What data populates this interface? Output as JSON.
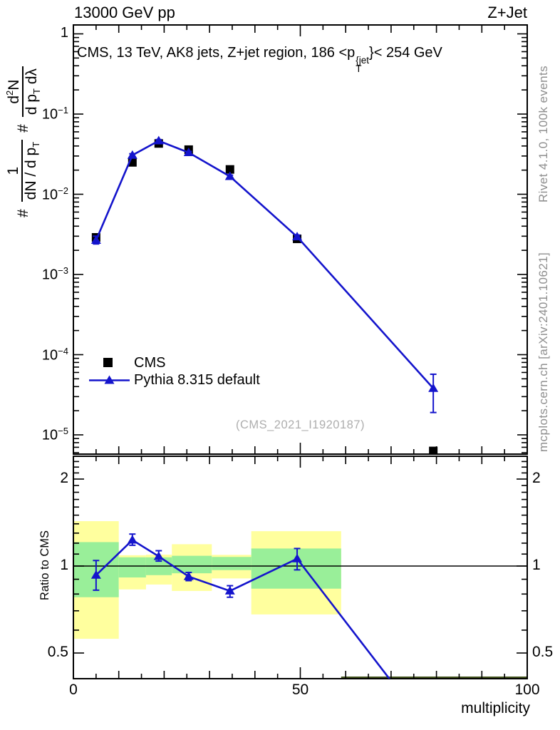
{
  "header": {
    "left": "13000 GeV pp",
    "right": "Z+Jet"
  },
  "side_text": {
    "top": "Rivet 4.1.0,  100k events",
    "bottom": "mcplots.cern.ch [arXiv:2401.10621]"
  },
  "main_plot": {
    "title": {
      "pre": "CMS, 13 TeV, AK8 jets, Z+jet region, 186 <p",
      "sup": "{jet",
      "sub": "T",
      "post": "}< 254 GeV"
    },
    "ylabel": {
      "hash1": "#",
      "frac1_num": "1",
      "frac1_den_pre": "dN / d p",
      "frac1_den_sub": "T",
      "hash2": "#",
      "frac2_num_pre": "d",
      "frac2_num_sup": "2",
      "frac2_num_post": "N",
      "frac2_den_pre": "d p",
      "frac2_den_sub": "T",
      "frac2_den_post": " dλ"
    },
    "watermark": "(CMS_2021_I1920187)",
    "legend": {
      "entries": [
        {
          "label": "CMS",
          "marker": "black-square"
        },
        {
          "label": "Pythia 8.315 default",
          "marker": "blue-line-triangle"
        }
      ]
    }
  },
  "ratio_plot": {
    "ylabel": "Ratio to CMS"
  },
  "axes": {
    "x": {
      "label": "multiplicity",
      "ticks": [
        {
          "label": "0",
          "x": 0
        },
        {
          "label": "50",
          "x": 50
        },
        {
          "label": "100",
          "x": 100
        }
      ]
    },
    "main_y": {
      "ticks": [
        {
          "base": "1",
          "exp": "",
          "v": 1
        },
        {
          "base": "10",
          "exp": "−1",
          "v": 0.1
        },
        {
          "base": "10",
          "exp": "−2",
          "v": 0.01
        },
        {
          "base": "10",
          "exp": "−3",
          "v": 0.001
        },
        {
          "base": "10",
          "exp": "−4",
          "v": 0.0001
        },
        {
          "base": "10",
          "exp": "−5",
          "v": 1e-05
        }
      ]
    },
    "ratio_y": {
      "ticks": [
        {
          "label": "2",
          "v": 2
        },
        {
          "label": "1",
          "v": 1
        },
        {
          "label": "0.5",
          "v": 0.5
        }
      ]
    }
  },
  "colors": {
    "mc_blue": "#1414cc",
    "data_black": "#000000",
    "band_yellow": "#ffff9e",
    "band_green": "#99ef99",
    "band_green_dark": "#44541e",
    "gray_text": "#8f8f8f",
    "watermark_gray": "#aeaeae"
  },
  "chart_data": [
    {
      "type": "line",
      "panel": "main",
      "title": "CMS, 13 TeV, AK8 jets, Z+jet region, 186 < pT{jet} < 254 GeV",
      "xlabel": "multiplicity",
      "ylabel": "#1/(dN/dpT) # d2N/(dpT dlambda)",
      "xlim": [
        0,
        100
      ],
      "ylim": [
        5.7e-06,
        1.29
      ],
      "yscale": "log",
      "x": [
        5.0,
        13.0,
        18.8,
        25.4,
        34.5,
        49.3,
        79.3
      ],
      "series": [
        {
          "name": "CMS",
          "marker": "square",
          "color": "#000000",
          "values": [
            0.0029,
            0.025,
            0.043,
            0.036,
            0.0204,
            0.00278,
            6.3e-06
          ]
        },
        {
          "name": "Pythia 8.315 default",
          "marker": "triangle",
          "color": "#1414cc",
          "values": [
            0.00267,
            0.0307,
            0.0464,
            0.0331,
            0.0167,
            0.00295,
            3.8e-05
          ],
          "err_lo": [
            0.0024,
            0.0295,
            0.045,
            0.032,
            0.0161,
            0.0028,
            1.9e-05
          ],
          "err_hi": [
            0.003,
            0.032,
            0.048,
            0.0342,
            0.0173,
            0.0031,
            5.7e-05
          ]
        }
      ],
      "legend_position": "left-middle"
    },
    {
      "type": "line",
      "panel": "ratio",
      "ylabel": "Ratio to CMS",
      "xlim": [
        0,
        100
      ],
      "ylim": [
        0.407,
        2.4
      ],
      "yscale": "log",
      "yticks": [
        0.5,
        1,
        2
      ],
      "x": [
        5.0,
        13.0,
        18.8,
        25.4,
        34.5,
        49.3,
        80.0
      ],
      "series": [
        {
          "name": "Pythia 8.315 default / CMS",
          "marker": "triangle",
          "color": "#1414cc",
          "values": [
            0.93,
            1.23,
            1.08,
            0.92,
            0.82,
            1.06,
            0.25
          ],
          "err_lo": [
            0.825,
            1.18,
            1.04,
            0.89,
            0.78,
            0.97,
            0.25
          ],
          "err_hi": [
            1.045,
            1.29,
            1.13,
            0.95,
            0.855,
            1.15,
            0.25
          ]
        }
      ],
      "unity_line": 1,
      "bands": [
        {
          "x0": 0,
          "x1": 10,
          "yellow": [
            0.56,
            1.43
          ],
          "green": [
            0.78,
            1.21
          ]
        },
        {
          "x0": 10,
          "x1": 16,
          "yellow": [
            0.83,
            1.09
          ],
          "green": [
            0.913,
            1.072
          ]
        },
        {
          "x0": 16,
          "x1": 21.7,
          "yellow": [
            0.863,
            1.095
          ],
          "green": [
            0.93,
            1.072
          ]
        },
        {
          "x0": 21.7,
          "x1": 30.5,
          "yellow": [
            0.82,
            1.19
          ],
          "green": [
            0.944,
            1.085
          ]
        },
        {
          "x0": 30.5,
          "x1": 39.2,
          "yellow": [
            0.906,
            1.093
          ],
          "green": [
            0.968,
            1.075
          ]
        },
        {
          "x0": 39.2,
          "x1": 59,
          "yellow": [
            0.68,
            1.32
          ],
          "green": [
            0.835,
            1.15
          ]
        },
        {
          "x0": 59,
          "x1": 100,
          "yellow": null,
          "green": "clipped-bottom"
        }
      ]
    }
  ]
}
